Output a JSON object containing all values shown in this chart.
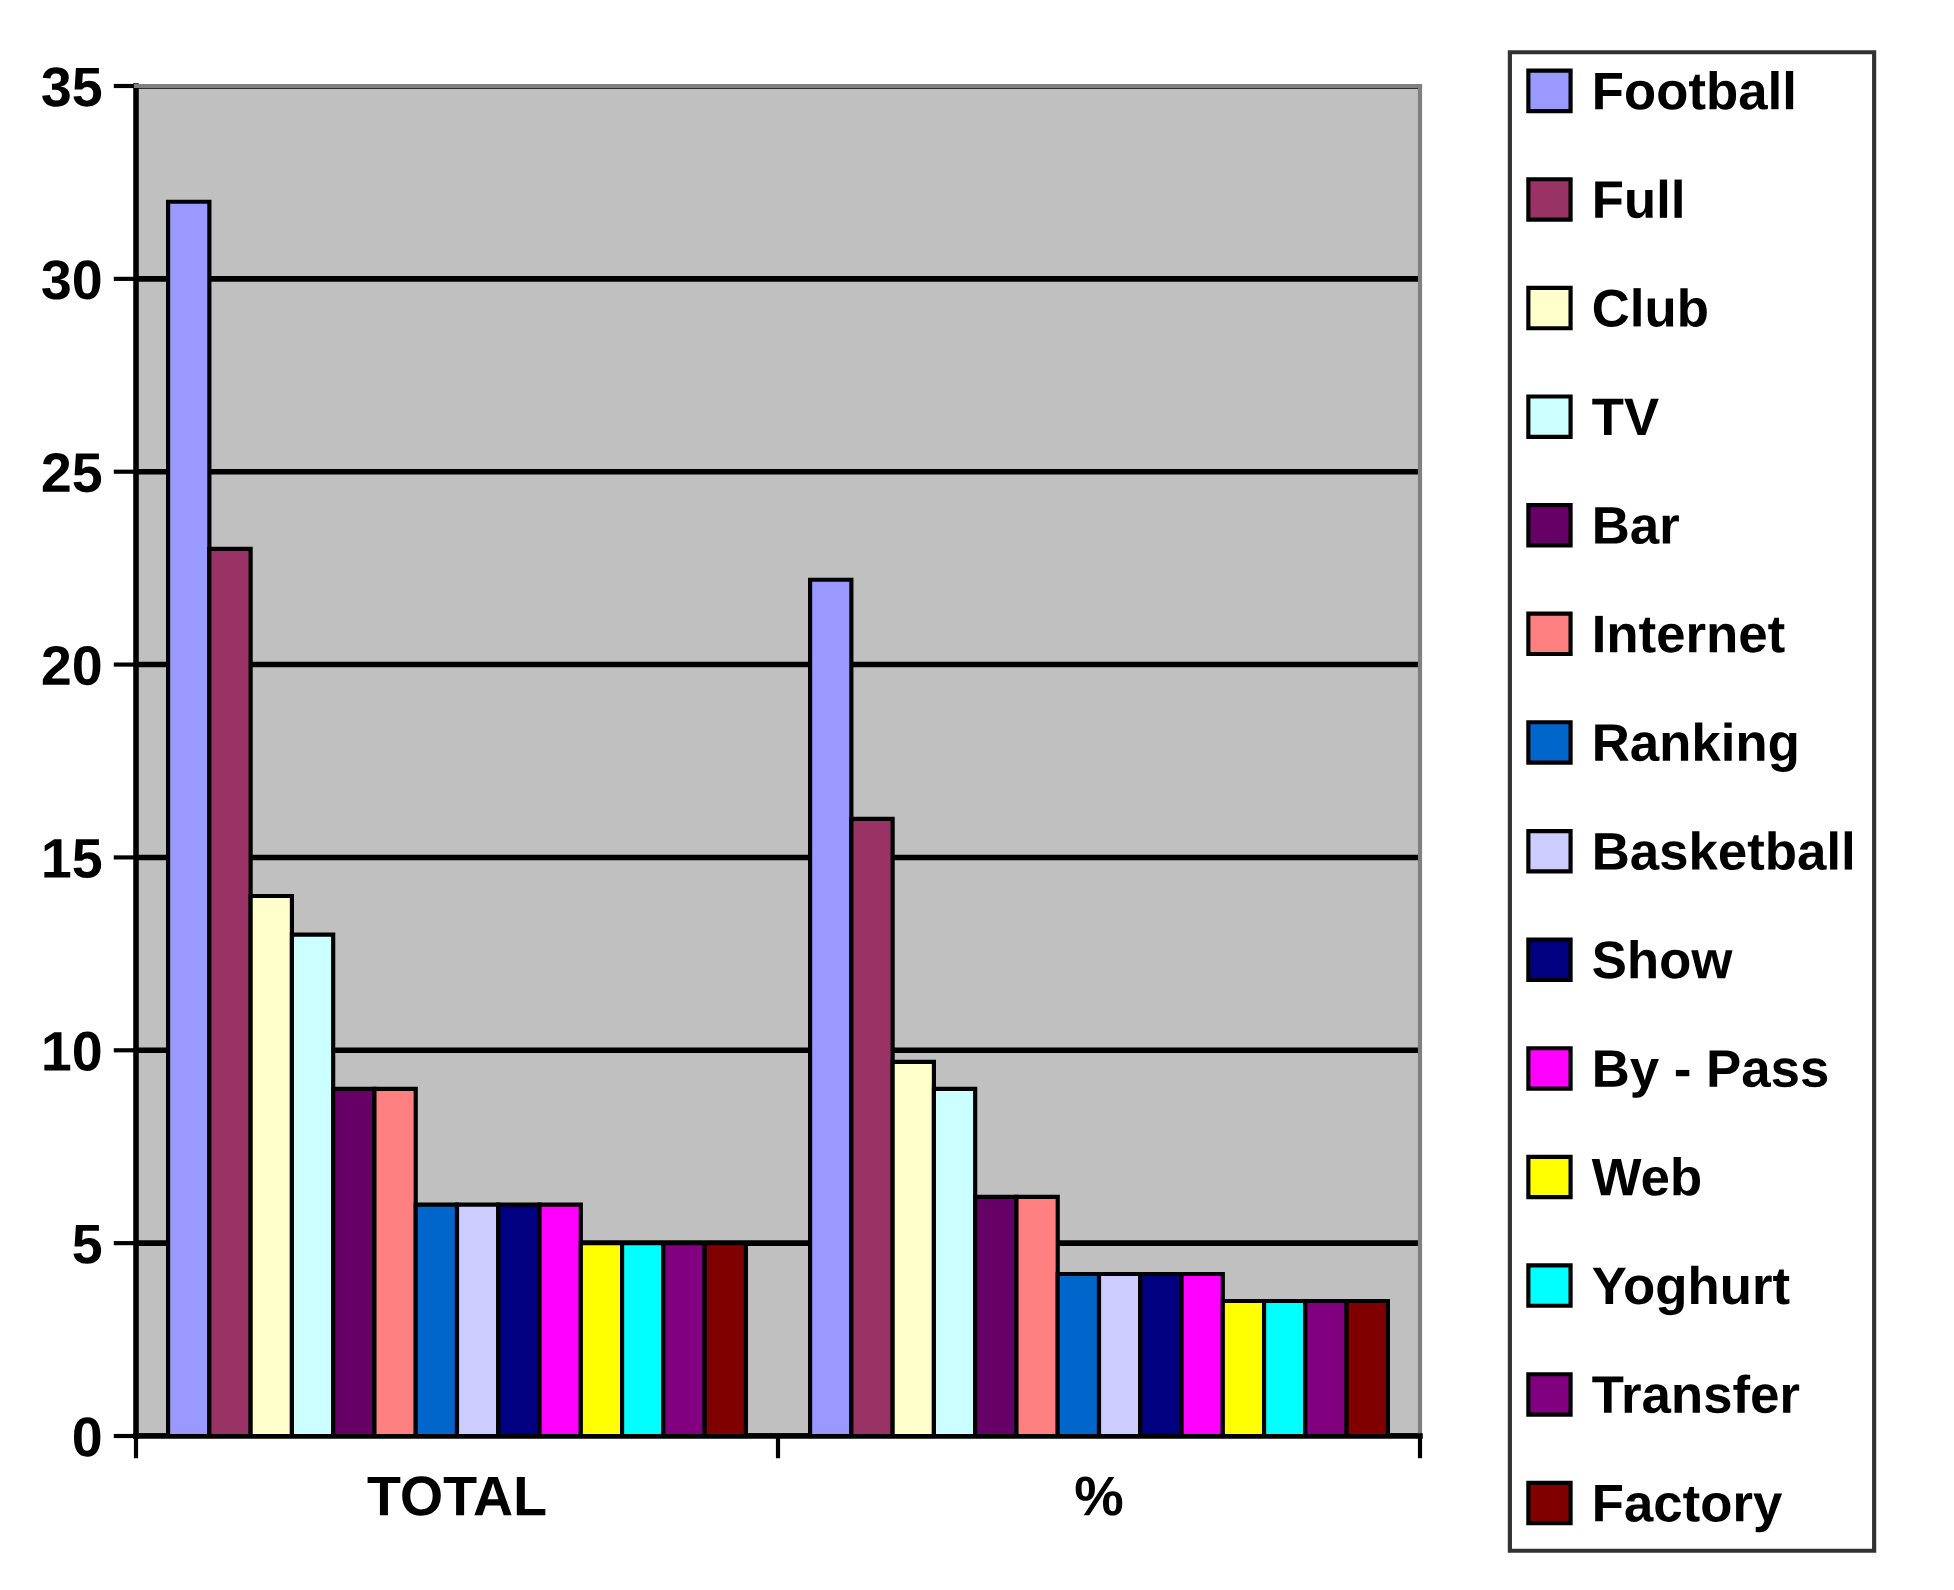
{
  "chart_data": {
    "type": "bar",
    "categories": [
      "TOTAL",
      "%"
    ],
    "series": [
      {
        "name": "Football",
        "color": "#9999ff",
        "values": [
          32,
          22.2
        ]
      },
      {
        "name": "Full",
        "color": "#993366",
        "values": [
          23,
          16.0
        ]
      },
      {
        "name": "Club",
        "color": "#ffffcc",
        "values": [
          14,
          9.7
        ]
      },
      {
        "name": "TV",
        "color": "#ccffff",
        "values": [
          13,
          9.0
        ]
      },
      {
        "name": "Bar",
        "color": "#660066",
        "values": [
          9,
          6.2
        ]
      },
      {
        "name": "Internet",
        "color": "#ff8080",
        "values": [
          9,
          6.2
        ]
      },
      {
        "name": "Ranking",
        "color": "#0066cc",
        "values": [
          6,
          4.2
        ]
      },
      {
        "name": "Basketball",
        "color": "#ccccff",
        "values": [
          6,
          4.2
        ]
      },
      {
        "name": "Show",
        "color": "#000080",
        "values": [
          6,
          4.2
        ]
      },
      {
        "name": "By - Pass",
        "color": "#ff00ff",
        "values": [
          6,
          4.2
        ]
      },
      {
        "name": "Web",
        "color": "#ffff00",
        "values": [
          5,
          3.5
        ]
      },
      {
        "name": "Yoghurt",
        "color": "#00ffff",
        "values": [
          5,
          3.5
        ]
      },
      {
        "name": "Transfer",
        "color": "#800080",
        "values": [
          5,
          3.5
        ]
      },
      {
        "name": "Factory",
        "color": "#800000",
        "values": [
          5,
          3.5
        ]
      }
    ],
    "ylim": [
      0,
      35
    ],
    "yticks": [
      0,
      5,
      10,
      15,
      20,
      25,
      30,
      35
    ],
    "grid": "y",
    "legend": "right"
  }
}
